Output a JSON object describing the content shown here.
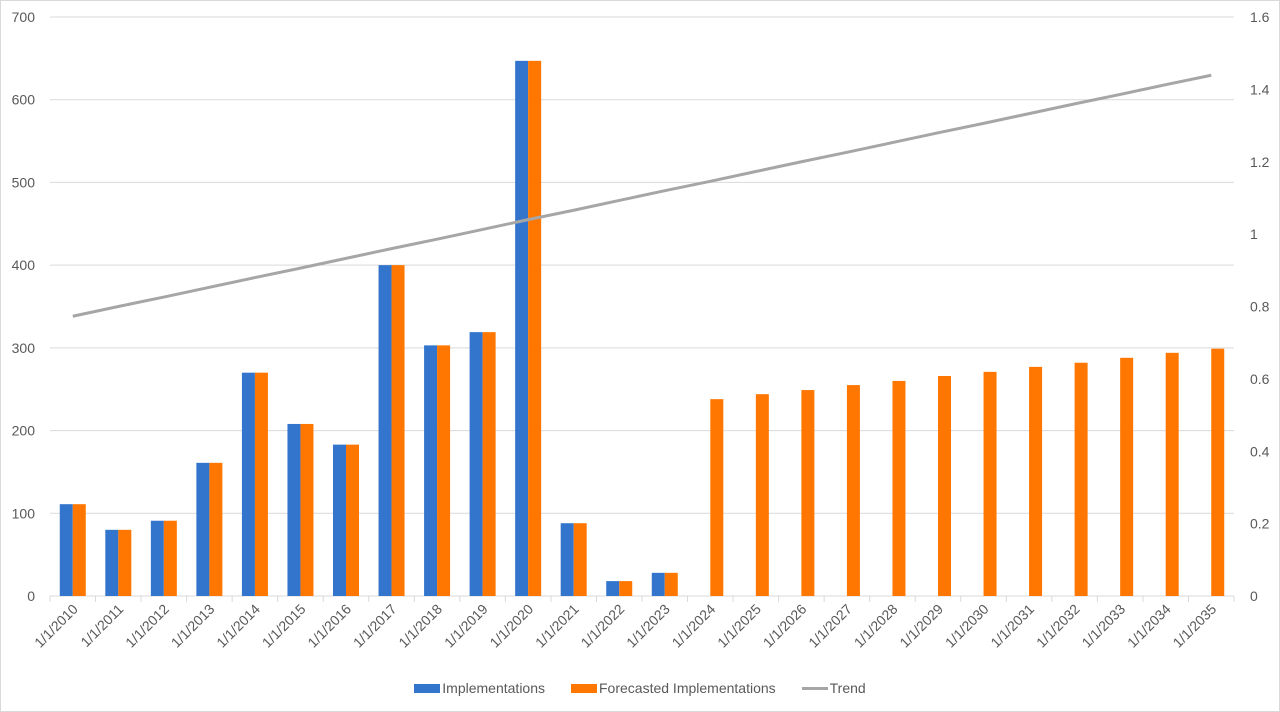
{
  "chart_data": {
    "type": "bar",
    "categories": [
      "1/1/2010",
      "1/1/2011",
      "1/1/2012",
      "1/1/2013",
      "1/1/2014",
      "1/1/2015",
      "1/1/2016",
      "1/1/2017",
      "1/1/2018",
      "1/1/2019",
      "1/1/2020",
      "1/1/2021",
      "1/1/2022",
      "1/1/2023",
      "1/1/2024",
      "1/1/2025",
      "1/1/2026",
      "1/1/2027",
      "1/1/2028",
      "1/1/2029",
      "1/1/2030",
      "1/1/2031",
      "1/1/2032",
      "1/1/2033",
      "1/1/2034",
      "1/1/2035"
    ],
    "series": [
      {
        "name": "Implementations",
        "type": "bar",
        "axis": "left",
        "color": "#3375cc",
        "values": [
          111,
          80,
          91,
          161,
          270,
          208,
          183,
          400,
          303,
          319,
          647,
          88,
          18,
          28,
          null,
          null,
          null,
          null,
          null,
          null,
          null,
          null,
          null,
          null,
          null,
          null
        ]
      },
      {
        "name": "Forecasted Implementations",
        "type": "bar",
        "axis": "left",
        "color": "#ff7700",
        "values": [
          111,
          80,
          91,
          161,
          270,
          208,
          183,
          400,
          303,
          319,
          647,
          88,
          18,
          28,
          238,
          244,
          249,
          255,
          260,
          266,
          271,
          277,
          282,
          288,
          294,
          299
        ]
      },
      {
        "name": "Trend",
        "type": "line",
        "axis": "right",
        "color": "#a6a6a6",
        "values": [
          0.773,
          0.8,
          0.826,
          0.853,
          0.88,
          0.906,
          0.933,
          0.96,
          0.986,
          1.013,
          1.04,
          1.066,
          1.093,
          1.12,
          1.146,
          1.173,
          1.2,
          1.226,
          1.253,
          1.28,
          1.306,
          1.333,
          1.36,
          1.386,
          1.413,
          1.439
        ]
      }
    ],
    "ylim": [
      0,
      700
    ],
    "yticks": [
      "0",
      "100",
      "200",
      "300",
      "400",
      "500",
      "600",
      "700"
    ],
    "y2lim": [
      0,
      1.6
    ],
    "y2ticks": [
      "0",
      "0.2",
      "0.4",
      "0.6",
      "0.8",
      "1",
      "1.2",
      "1.4",
      "1.6"
    ],
    "grid": true,
    "legend": "bottom"
  }
}
